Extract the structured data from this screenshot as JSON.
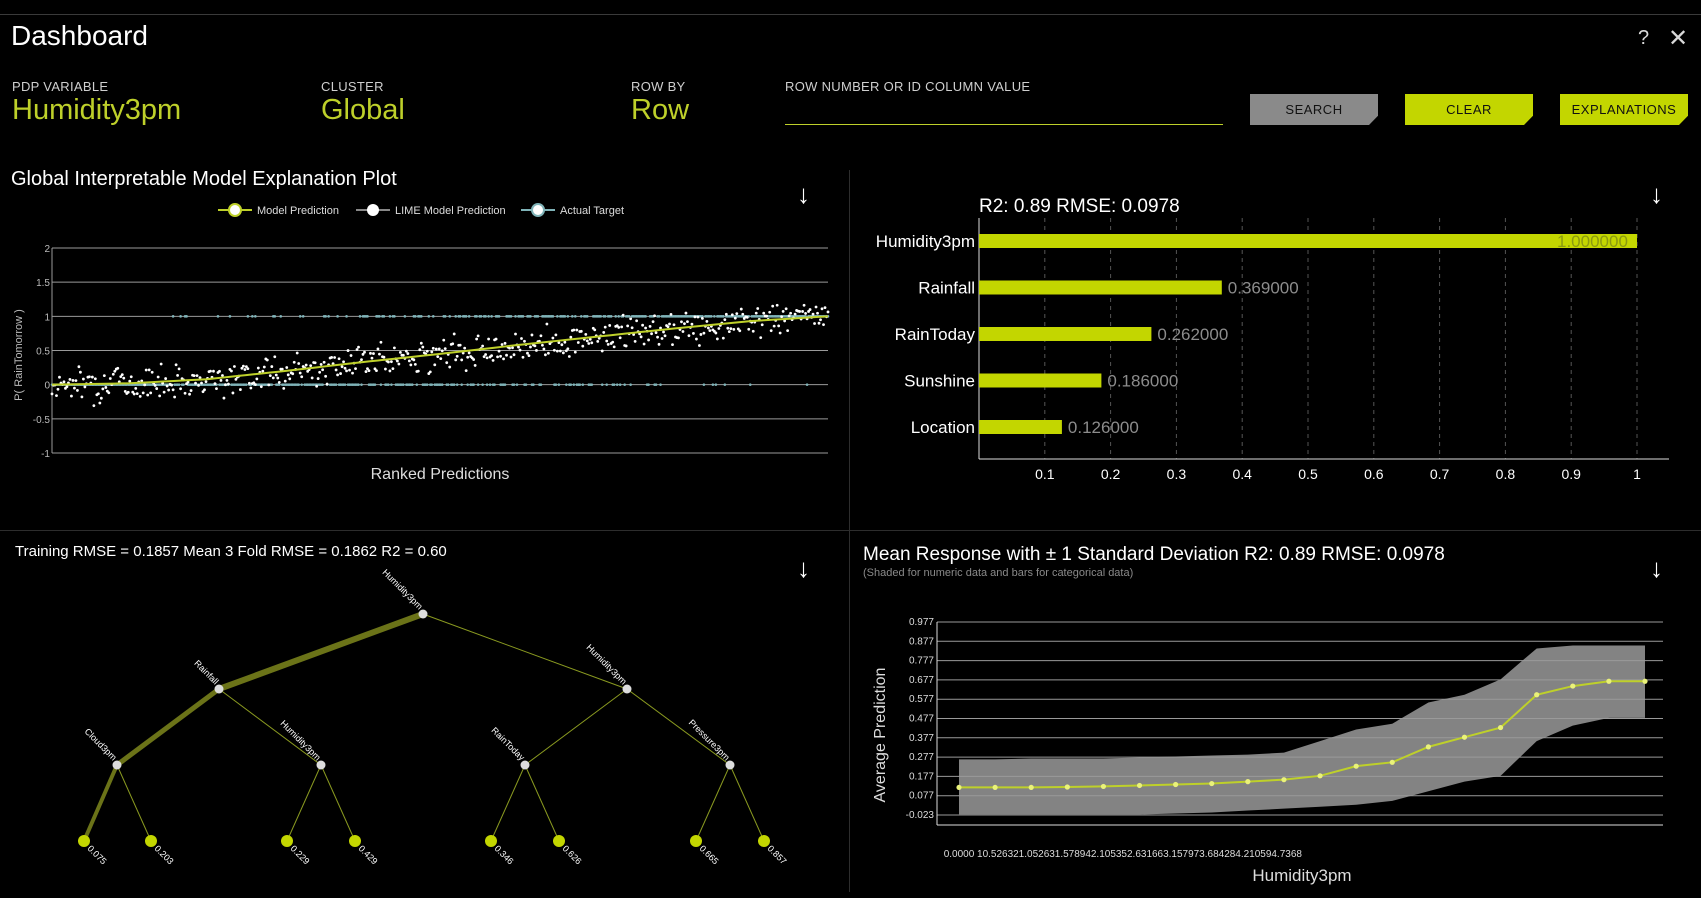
{
  "app": {
    "title": "Dashboard",
    "help": "?",
    "close": "✕"
  },
  "controls": {
    "pdp_variable": {
      "label": "PDP VARIABLE",
      "value": "Humidity3pm"
    },
    "cluster": {
      "label": "CLUSTER",
      "value": "Global"
    },
    "row_by": {
      "label": "ROW BY",
      "value": "Row"
    },
    "row_number": {
      "label": "ROW NUMBER OR ID COLUMN VALUE",
      "value": ""
    },
    "search_label": "SEARCH",
    "clear_label": "CLEAR",
    "explanations_label": "EXPLANATIONS"
  },
  "download_icon": "↓",
  "colors": {
    "accent": "#bed02a",
    "bar": "#c3d600",
    "target": "#7fb3b8",
    "tree": "#6b7318"
  },
  "chart_data": [
    {
      "type": "scatter",
      "title": "Global Interpretable Model Explanation Plot",
      "legend": [
        "Model Prediction",
        "LIME Model Prediction",
        "Actual Target"
      ],
      "legend_position": "top",
      "xlabel": "Ranked Predictions",
      "ylabel": "P( RainTomorrow )",
      "ylim": [
        -1,
        2
      ],
      "yticks": [
        "2",
        "1.5",
        "1",
        "0.5",
        "0",
        "-0.5",
        "-1"
      ],
      "model_prediction_curve": {
        "x": [
          0,
          0.1,
          0.2,
          0.3,
          0.4,
          0.5,
          0.6,
          0.7,
          0.8,
          0.9,
          1.0
        ],
        "y": [
          0.0,
          0.02,
          0.08,
          0.2,
          0.33,
          0.45,
          0.58,
          0.7,
          0.82,
          0.93,
          1.0
        ]
      },
      "lime_spread": 0.18,
      "actual_target_values": [
        0,
        1
      ],
      "grid": true
    },
    {
      "type": "bar",
      "orientation": "horizontal",
      "title": "R2: 0.89 RMSE: 0.0978",
      "categories": [
        "Humidity3pm",
        "Rainfall",
        "RainToday",
        "Sunshine",
        "Location"
      ],
      "values": [
        1.0,
        0.369,
        0.262,
        0.186,
        0.126
      ],
      "value_labels": [
        "1.000000",
        "0.369000",
        "0.262000",
        "0.186000",
        "0.126000"
      ],
      "xlim": [
        0,
        1
      ],
      "xticks": [
        "0.1",
        "0.2",
        "0.3",
        "0.4",
        "0.5",
        "0.6",
        "0.7",
        "0.8",
        "0.9",
        "1"
      ],
      "grid": true
    },
    {
      "type": "tree",
      "title": "Training RMSE = 0.1857 Mean 3 Fold RMSE = 0.1862 R2 = 0.60",
      "nodes": [
        {
          "id": "root",
          "label": "Humidity3pm",
          "parent": null,
          "weight": 5
        },
        {
          "id": "l",
          "label": "Rainfall",
          "parent": "root",
          "weight": 5
        },
        {
          "id": "r",
          "label": "Humidity3pm",
          "parent": "root",
          "weight": 1
        },
        {
          "id": "ll",
          "label": "Cloud3pm",
          "parent": "l",
          "weight": 4
        },
        {
          "id": "lr",
          "label": "Humidity3pm",
          "parent": "l",
          "weight": 1
        },
        {
          "id": "rl",
          "label": "RainToday",
          "parent": "r",
          "weight": 1
        },
        {
          "id": "rr",
          "label": "Pressure3pm",
          "parent": "r",
          "weight": 1
        },
        {
          "id": "lll",
          "label": "0.075",
          "parent": "ll",
          "weight": 3,
          "leaf": true
        },
        {
          "id": "llr",
          "label": "0.203",
          "parent": "ll",
          "weight": 1,
          "leaf": true
        },
        {
          "id": "lrl",
          "label": "0.229",
          "parent": "lr",
          "weight": 1,
          "leaf": true
        },
        {
          "id": "lrr",
          "label": "0.429",
          "parent": "lr",
          "weight": 1,
          "leaf": true
        },
        {
          "id": "rll",
          "label": "0.346",
          "parent": "rl",
          "weight": 1,
          "leaf": true
        },
        {
          "id": "rlr",
          "label": "0.626",
          "parent": "rl",
          "weight": 1,
          "leaf": true
        },
        {
          "id": "rrl",
          "label": "0.665",
          "parent": "rr",
          "weight": 1,
          "leaf": true
        },
        {
          "id": "rrr",
          "label": "0.857",
          "parent": "rr",
          "weight": 1,
          "leaf": true
        }
      ]
    },
    {
      "type": "line",
      "title": "Mean Response with ± 1 Standard Deviation R2: 0.89 RMSE: 0.0978",
      "subtitle": "(Shaded for numeric data and bars for categorical data)",
      "xlabel": "Humidity3pm",
      "ylabel": "Average Prediction",
      "xticks": [
        "0.0000",
        "10.5263",
        "21.0526",
        "31.5789",
        "42.1053",
        "52.6316",
        "63.1579",
        "73.6842",
        "84.2105",
        "94.7368"
      ],
      "yticks": [
        "0.977",
        "0.877",
        "0.777",
        "0.677",
        "0.577",
        "0.477",
        "0.377",
        "0.277",
        "0.177",
        "0.077",
        "-0.023"
      ],
      "xlim": [
        0,
        100
      ],
      "ylim": [
        -0.023,
        0.977
      ],
      "x": [
        0,
        5.263,
        10.526,
        15.789,
        21.053,
        26.316,
        31.579,
        36.842,
        42.105,
        47.368,
        52.632,
        57.895,
        63.158,
        68.421,
        73.684,
        78.947,
        84.211,
        89.474,
        94.737,
        100
      ],
      "y": [
        0.12,
        0.12,
        0.12,
        0.122,
        0.125,
        0.13,
        0.135,
        0.14,
        0.15,
        0.16,
        0.18,
        0.23,
        0.25,
        0.33,
        0.38,
        0.43,
        0.6,
        0.645,
        0.67,
        0.67
      ],
      "upper": [
        0.265,
        0.265,
        0.27,
        0.27,
        0.27,
        0.275,
        0.28,
        0.285,
        0.29,
        0.3,
        0.36,
        0.42,
        0.45,
        0.56,
        0.6,
        0.68,
        0.84,
        0.855,
        0.855,
        0.855
      ],
      "lower": [
        -0.02,
        -0.02,
        -0.02,
        -0.02,
        -0.02,
        -0.02,
        -0.015,
        -0.01,
        0.0,
        0.01,
        0.02,
        0.03,
        0.05,
        0.1,
        0.15,
        0.18,
        0.36,
        0.44,
        0.48,
        0.48
      ]
    }
  ]
}
